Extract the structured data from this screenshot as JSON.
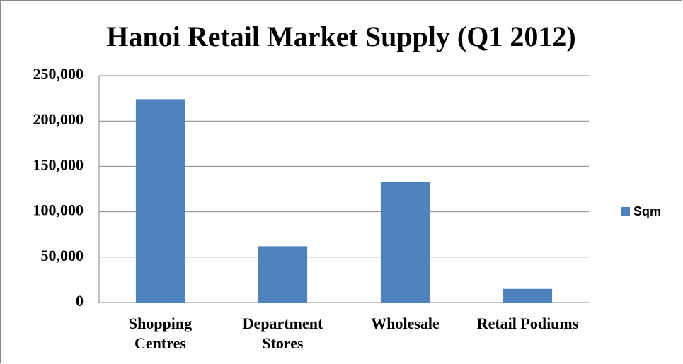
{
  "chart_data": {
    "type": "bar",
    "title": "Hanoi Retail Market Supply (Q1 2012)",
    "categories": [
      "Shopping Centres",
      "Department Stores",
      "Wholesale",
      "Retail Podiums"
    ],
    "series": [
      {
        "name": "Sqm",
        "color": "#4f81bd",
        "values": [
          224000,
          62000,
          133000,
          15000
        ]
      }
    ],
    "ylim": [
      0,
      250000
    ],
    "yticks": [
      0,
      {
        "value": 50000,
        "label": "50,000"
      },
      {
        "value": 100000,
        "label": "100,000"
      },
      {
        "value": 150000,
        "label": "150,000"
      },
      {
        "value": 200000,
        "label": "200,000"
      },
      {
        "value": 250000,
        "label": "250,000"
      }
    ],
    "grid": true,
    "legend": "right"
  }
}
